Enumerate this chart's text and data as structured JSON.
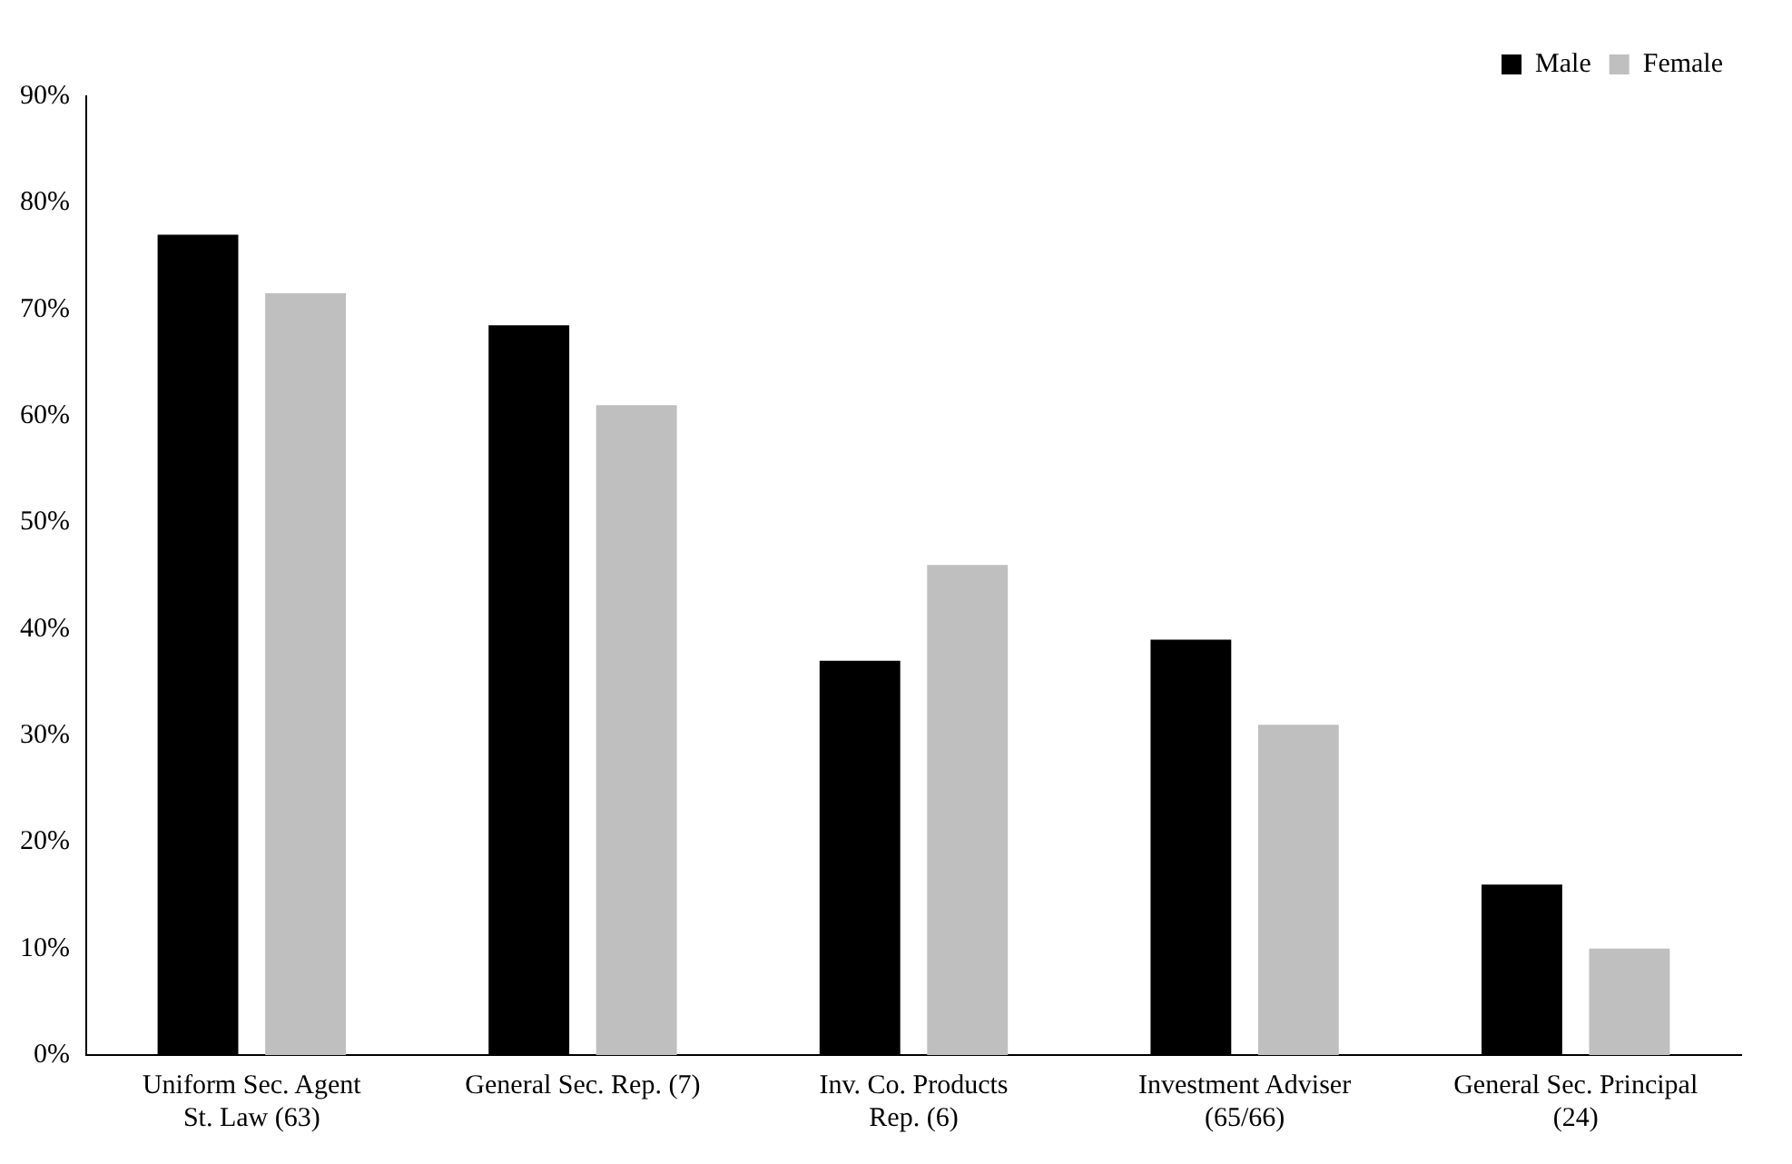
{
  "chart_data": {
    "type": "bar",
    "categories": [
      "Uniform Sec. Agent\nSt. Law (63)",
      "General Sec. Rep. (7)",
      "Inv. Co. Products\nRep. (6)",
      "Investment Adviser\n(65/66)",
      "General Sec. Principal\n(24)"
    ],
    "series": [
      {
        "name": "Male",
        "color": "#000000",
        "values": [
          77,
          68.5,
          37,
          39,
          16
        ]
      },
      {
        "name": "Female",
        "color": "#bfbfbf",
        "values": [
          71.5,
          61,
          46,
          31,
          10
        ]
      }
    ],
    "ylim": [
      0,
      90
    ],
    "yticks": [
      {
        "value": 0,
        "label": "0%"
      },
      {
        "value": 10,
        "label": "10%"
      },
      {
        "value": 20,
        "label": "20%"
      },
      {
        "value": 30,
        "label": "30%"
      },
      {
        "value": 40,
        "label": "40%"
      },
      {
        "value": 50,
        "label": "50%"
      },
      {
        "value": 60,
        "label": "60%"
      },
      {
        "value": 70,
        "label": "70%"
      },
      {
        "value": 80,
        "label": "80%"
      },
      {
        "value": 90,
        "label": "90%"
      }
    ],
    "grid": false,
    "legend": "top right"
  }
}
